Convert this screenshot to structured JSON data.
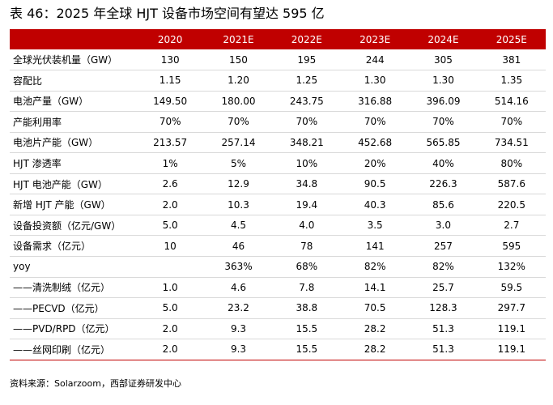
{
  "title": "表 46：2025 年全球 HJT 设备市场空间有望达 595 亿",
  "table": {
    "columns": [
      "",
      "2020",
      "2021E",
      "2022E",
      "2023E",
      "2024E",
      "2025E"
    ],
    "rows": [
      {
        "label": "全球光伏装机量（GW）",
        "values": [
          "130",
          "150",
          "195",
          "244",
          "305",
          "381"
        ]
      },
      {
        "label": "容配比",
        "values": [
          "1.15",
          "1.20",
          "1.25",
          "1.30",
          "1.30",
          "1.35"
        ]
      },
      {
        "label": "电池产量（GW）",
        "values": [
          "149.50",
          "180.00",
          "243.75",
          "316.88",
          "396.09",
          "514.16"
        ]
      },
      {
        "label": "产能利用率",
        "values": [
          "70%",
          "70%",
          "70%",
          "70%",
          "70%",
          "70%"
        ]
      },
      {
        "label": "电池片产能（GW）",
        "values": [
          "213.57",
          "257.14",
          "348.21",
          "452.68",
          "565.85",
          "734.51"
        ]
      },
      {
        "label": "HJT 渗透率",
        "values": [
          "1%",
          "5%",
          "10%",
          "20%",
          "40%",
          "80%"
        ]
      },
      {
        "label": "HJT 电池产能（GW）",
        "values": [
          "2.6",
          "12.9",
          "34.8",
          "90.5",
          "226.3",
          "587.6"
        ]
      },
      {
        "label": "新增 HJT 产能（GW）",
        "values": [
          "2.0",
          "10.3",
          "19.4",
          "40.3",
          "85.6",
          "220.5"
        ]
      },
      {
        "label": "设备投资额（亿元/GW）",
        "values": [
          "5.0",
          "4.5",
          "4.0",
          "3.5",
          "3.0",
          "2.7"
        ]
      },
      {
        "label": "设备需求（亿元）",
        "values": [
          "10",
          "46",
          "78",
          "141",
          "257",
          "595"
        ]
      },
      {
        "label": "yoy",
        "values": [
          "",
          "363%",
          "68%",
          "82%",
          "82%",
          "132%"
        ]
      },
      {
        "label": "——清洗制绒（亿元）",
        "values": [
          "1.0",
          "4.6",
          "7.8",
          "14.1",
          "25.7",
          "59.5"
        ]
      },
      {
        "label": "——PECVD（亿元）",
        "values": [
          "5.0",
          "23.2",
          "38.8",
          "70.5",
          "128.3",
          "297.7"
        ]
      },
      {
        "label": "——PVD/RPD（亿元）",
        "values": [
          "2.0",
          "9.3",
          "15.5",
          "28.2",
          "51.3",
          "119.1"
        ]
      },
      {
        "label": "——丝网印刷（亿元）",
        "values": [
          "2.0",
          "9.3",
          "15.5",
          "28.2",
          "51.3",
          "119.1"
        ]
      }
    ]
  },
  "source": "资料来源：Solarzoom，西部证券研发中心"
}
